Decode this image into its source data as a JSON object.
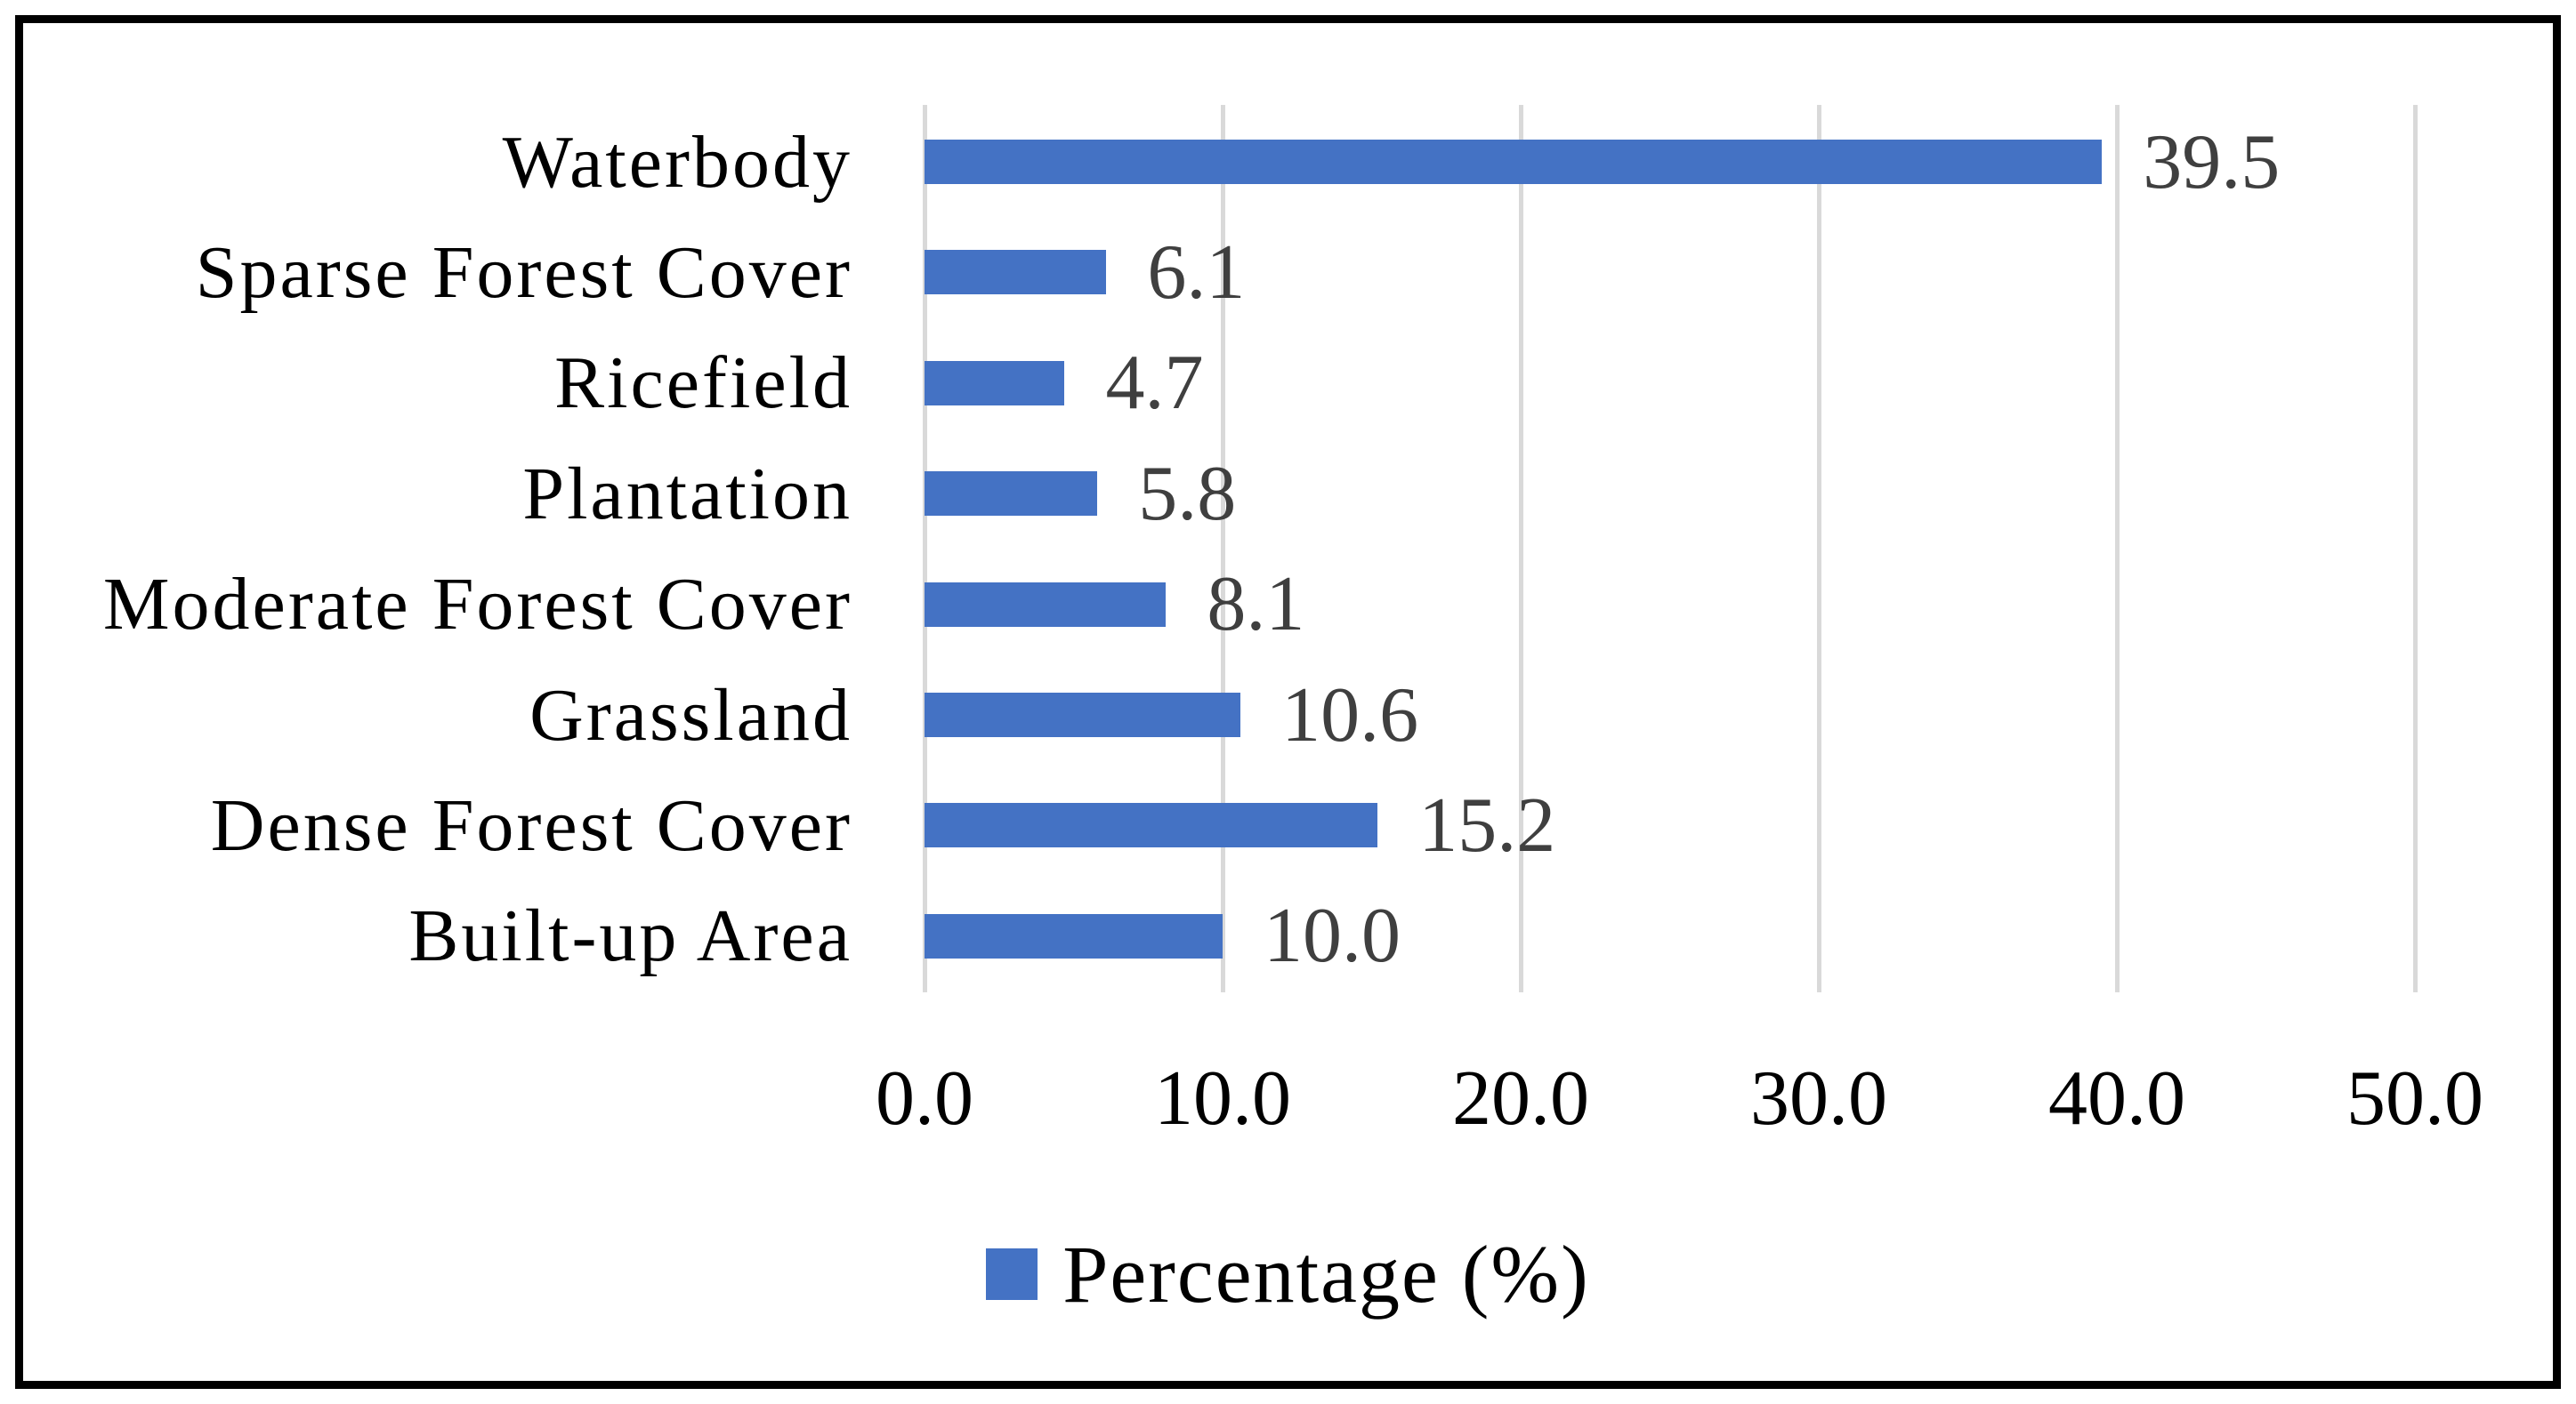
{
  "chart_data": {
    "type": "bar",
    "orientation": "horizontal",
    "title": "",
    "categories": [
      "Waterbody",
      "Sparse Forest Cover",
      "Ricefield",
      "Plantation",
      "Moderate Forest Cover",
      "Grassland",
      "Dense Forest Cover",
      "Built-up Area"
    ],
    "values": [
      39.5,
      6.1,
      4.7,
      5.8,
      8.1,
      10.6,
      15.2,
      10.0
    ],
    "value_labels": [
      "39.5",
      "6.1",
      "4.7",
      "5.8",
      "8.1",
      "10.6",
      "15.2",
      "10.0"
    ],
    "xlabel": "",
    "ylabel": "",
    "xlim": [
      0,
      50
    ],
    "x_tick_values": [
      0,
      10,
      20,
      30,
      40,
      50
    ],
    "x_tick_labels": [
      "0.0",
      "10.0",
      "20.0",
      "30.0",
      "40.0",
      "50.0"
    ],
    "grid": "vertical-only",
    "legend": {
      "label": "Percentage (%)",
      "position": "bottom-center"
    },
    "colors": {
      "bar": "#4472C4",
      "gridline": "#D9D9D9",
      "value_label": "#3F3F3F",
      "axis_text": "#000000",
      "frame_border": "#000000",
      "background": "#FFFFFF"
    }
  }
}
